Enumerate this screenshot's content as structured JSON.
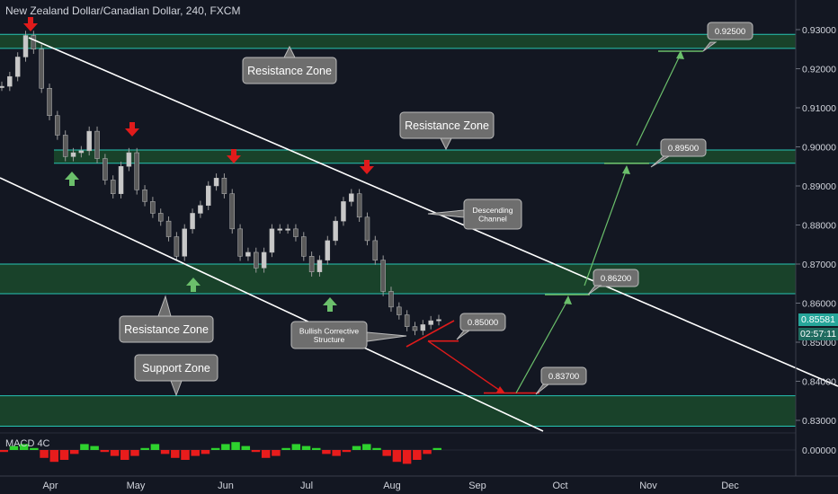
{
  "header": {
    "symbol_title": "New Zealand Dollar/Canadian Dollar, 240, FXCM"
  },
  "macd": {
    "label": "MACD 4C"
  },
  "price_axis": {
    "current_price": "0.85581",
    "countdown": "02:57:11",
    "price_bg": "#26a69a",
    "countdown_bg": "#1f6b5f"
  },
  "colors": {
    "zone_fill": "#1b4a2c",
    "zone_edge": "#27c4b4",
    "up_candle": "#c8c8c8",
    "down_candle": "#c8c8c8",
    "red_arrow": "#e01b1b",
    "green_arrow": "#6bbf6b",
    "macd_up": "#2ed22e",
    "macd_down": "#e81c1c"
  },
  "chart_data": {
    "type": "candlestick",
    "title": "New Zealand Dollar/Canadian Dollar, 240, FXCM",
    "timeframe": "240",
    "source": "FXCM",
    "y_ticks": [
      "0.93000",
      "0.92000",
      "0.91000",
      "0.90000",
      "0.89000",
      "0.88000",
      "0.87000",
      "0.86000",
      "0.85000",
      "0.84000",
      "0.83000"
    ],
    "x_ticks": [
      "Apr",
      "May",
      "Jun",
      "Jul",
      "Aug",
      "Sep",
      "Oct",
      "Nov",
      "Dec"
    ],
    "macd_ticks": [
      "0.00000"
    ],
    "ylim": [
      0.8275,
      0.9345
    ],
    "zones": [
      {
        "from": 0.9252,
        "to": 0.9288
      },
      {
        "from": 0.8958,
        "to": 0.8992
      },
      {
        "from": 0.8624,
        "to": 0.87
      },
      {
        "from": 0.8285,
        "to": 0.8363
      }
    ],
    "annotations": {
      "resistance_zone": "Resistance Zone",
      "support_zone": "Support Zone",
      "descending_channel": "Descending Channel",
      "bullish_corrective": "Bullish Corrective Structure"
    },
    "targets": [
      {
        "label": "0.85000",
        "value": 0.85
      },
      {
        "label": "0.83700",
        "value": 0.837
      },
      {
        "label": "0.86200",
        "value": 0.862
      },
      {
        "label": "0.89500",
        "value": 0.895
      },
      {
        "label": "0.92500",
        "value": 0.925
      }
    ],
    "closes": [
      0.9155,
      0.918,
      0.923,
      0.9285,
      0.925,
      0.915,
      0.908,
      0.903,
      0.8975,
      0.8985,
      0.899,
      0.904,
      0.897,
      0.8915,
      0.888,
      0.895,
      0.8985,
      0.889,
      0.886,
      0.883,
      0.881,
      0.877,
      0.872,
      0.879,
      0.883,
      0.885,
      0.89,
      0.892,
      0.888,
      0.879,
      0.872,
      0.873,
      0.869,
      0.873,
      0.879,
      0.879,
      0.879,
      0.877,
      0.872,
      0.868,
      0.871,
      0.876,
      0.881,
      0.886,
      0.888,
      0.882,
      0.876,
      0.871,
      0.863,
      0.859,
      0.857,
      0.854,
      0.853,
      0.8545,
      0.8555,
      0.8558
    ],
    "macd": [
      -0.0002,
      0.0004,
      0.0006,
      0.0002,
      -0.0008,
      -0.0012,
      -0.001,
      -0.0004,
      0.0006,
      0.0004,
      -0.0002,
      -0.0006,
      -0.001,
      -0.0006,
      0.0002,
      0.0006,
      -0.0004,
      -0.0008,
      -0.001,
      -0.0006,
      -0.0004,
      0.0002,
      0.0006,
      0.0008,
      0.0004,
      -0.0002,
      -0.0008,
      -0.0006,
      0.0002,
      0.0006,
      0.0004,
      0.0002,
      -0.0004,
      -0.0006,
      -0.0002,
      0.0004,
      0.0006,
      0.0002,
      -0.0006,
      -0.0012,
      -0.0014,
      -0.001,
      -0.0004,
      0.0002
    ]
  }
}
